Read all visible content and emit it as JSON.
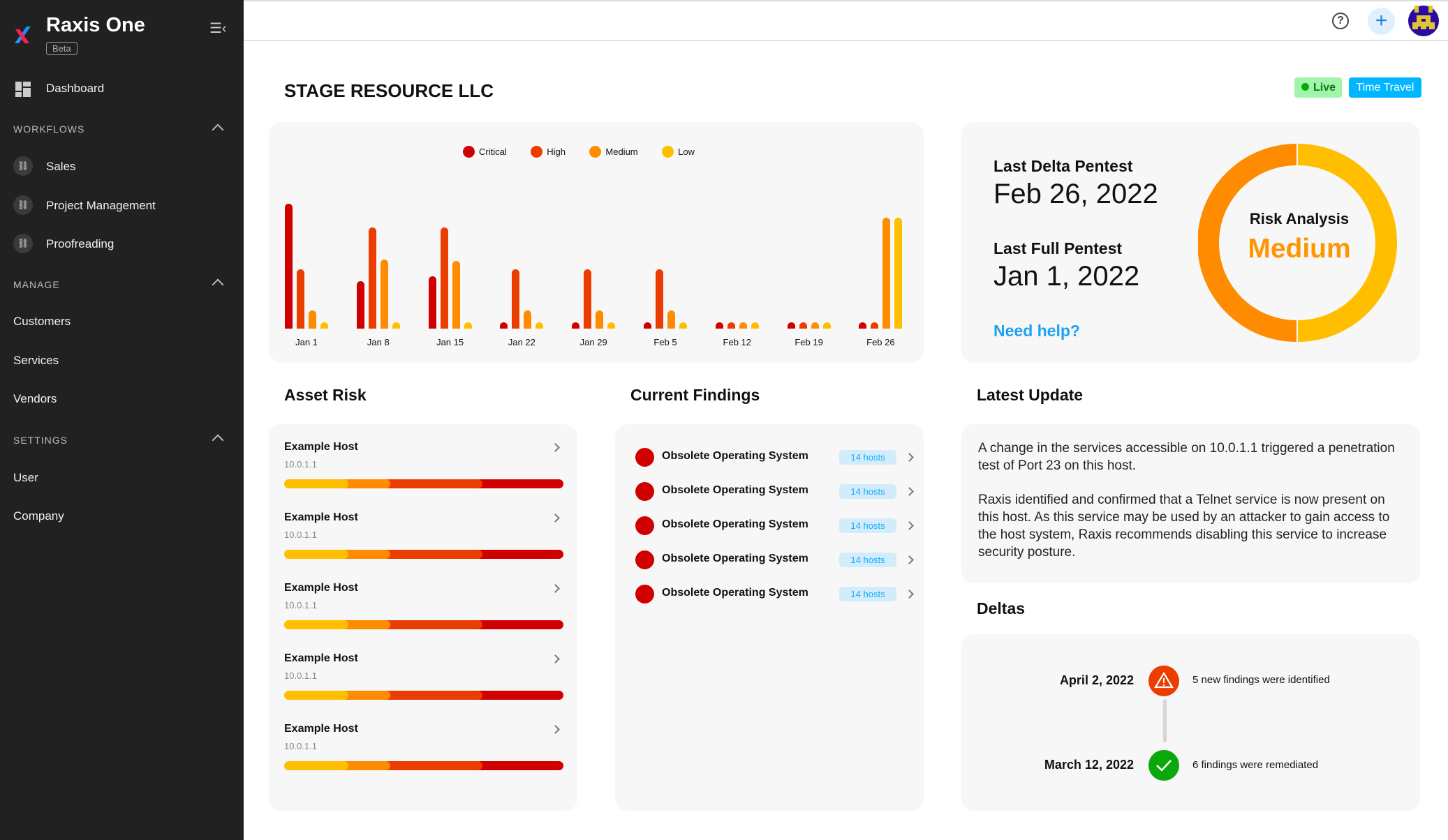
{
  "app": {
    "title": "Raxis One",
    "badge": "Beta"
  },
  "sidebar": {
    "dashboard": "Dashboard",
    "sections": [
      {
        "label": "WORKFLOWS",
        "items": [
          "Sales",
          "Project Management",
          "Proofreading"
        ]
      },
      {
        "label": "MANAGE",
        "items": [
          "Customers",
          "Services",
          "Vendors"
        ]
      },
      {
        "label": "SETTINGS",
        "items": [
          "User",
          "Company"
        ]
      }
    ]
  },
  "header": {
    "company": "STAGE RESOURCE LLC",
    "live": "Live",
    "time_travel": "Time Travel"
  },
  "colors": {
    "critical": "#d10000",
    "high": "#ec3d00",
    "medium": "#ff8c00",
    "low": "#ffbf00",
    "accent": "#00b7ff",
    "live_bg": "#a0f5aa"
  },
  "chart_data": {
    "type": "bar",
    "categories": [
      "Jan 1",
      "Jan 8",
      "Jan 15",
      "Jan 22",
      "Jan 29",
      "Feb 5",
      "Feb 12",
      "Feb 19",
      "Feb 26"
    ],
    "series": [
      {
        "name": "Critical",
        "values": [
          10,
          3.5,
          3.9,
          0,
          0,
          0,
          0,
          0,
          0
        ]
      },
      {
        "name": "High",
        "values": [
          4.5,
          8,
          8,
          4.5,
          4.5,
          4.5,
          0,
          0,
          0
        ]
      },
      {
        "name": "Medium",
        "values": [
          1,
          5.3,
          5.2,
          1,
          1,
          1,
          0,
          0,
          8.8
        ]
      },
      {
        "name": "Low",
        "values": [
          0,
          0,
          0,
          0,
          0,
          0,
          0,
          0,
          8.8
        ]
      }
    ],
    "legend": "top-center",
    "grid": false
  },
  "pentest": {
    "delta_label": "Last Delta Pentest",
    "delta_date": "Feb 26, 2022",
    "full_label": "Last Full Pentest",
    "full_date": "Jan 1, 2022",
    "help": "Need help?"
  },
  "risk": {
    "label": "Risk Analysis",
    "level": "Medium",
    "split": {
      "medium": 50,
      "low": 50
    }
  },
  "asset_risk": {
    "title": "Asset Risk",
    "items": [
      {
        "name": "Example Host",
        "ip": "10.0.1.1"
      },
      {
        "name": "Example Host",
        "ip": "10.0.1.1"
      },
      {
        "name": "Example Host",
        "ip": "10.0.1.1"
      },
      {
        "name": "Example Host",
        "ip": "10.0.1.1"
      },
      {
        "name": "Example Host",
        "ip": "10.0.1.1"
      }
    ],
    "distribution": {
      "low": 23,
      "medium": 15,
      "high": 33,
      "critical": 29
    }
  },
  "findings": {
    "title": "Current Findings",
    "items": [
      {
        "name": "Obsolete Operating System",
        "hosts": "14 hosts"
      },
      {
        "name": "Obsolete Operating System",
        "hosts": "14 hosts"
      },
      {
        "name": "Obsolete Operating System",
        "hosts": "14 hosts"
      },
      {
        "name": "Obsolete Operating System",
        "hosts": "14 hosts"
      },
      {
        "name": "Obsolete Operating System",
        "hosts": "14 hosts"
      }
    ]
  },
  "latest_update": {
    "title": "Latest Update",
    "paragraphs": [
      "A change in the services accessible on 10.0.1.1 triggered a penetration test of Port 23 on this host.",
      "Raxis identified and confirmed that a Telnet service is now present on this host. As this service may be used by an attacker to gain access to the host system, Raxis recommends disabling this service to increase security posture."
    ]
  },
  "deltas": {
    "title": "Deltas",
    "items": [
      {
        "date": "April 2, 2022",
        "text": "5 new findings were identified",
        "icon": "warning"
      },
      {
        "date": "March 12, 2022",
        "text": "6 findings were remediated",
        "icon": "check"
      }
    ]
  }
}
